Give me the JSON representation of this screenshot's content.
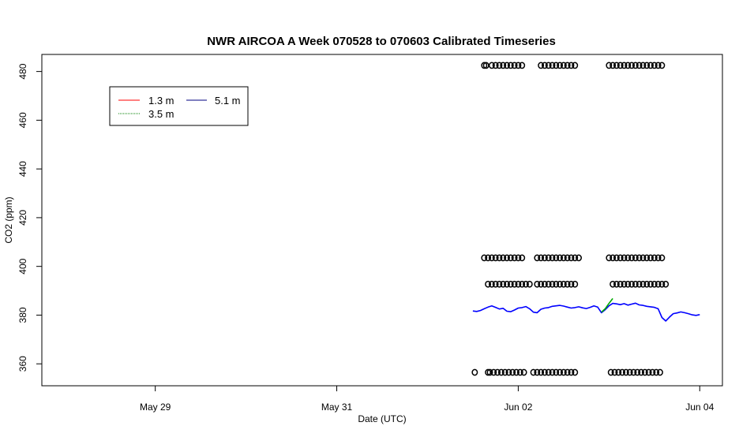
{
  "chart_data": {
    "type": "line",
    "title": "NWR AIRCOA A  Week 070528 to 070603  Calibrated Timeseries",
    "xlabel": "Date (UTC)",
    "ylabel": "CO2 (ppm)",
    "xlim": [
      "2007-05-27T18:00",
      "2007-06-04T06:00"
    ],
    "ylim": [
      351,
      487
    ],
    "x_ticks": [
      {
        "date": "2007-05-29",
        "label": "May 29"
      },
      {
        "date": "2007-05-31",
        "label": "May 31"
      },
      {
        "date": "2007-06-02",
        "label": "Jun 02"
      },
      {
        "date": "2007-06-04",
        "label": "Jun 04"
      }
    ],
    "y_ticks": [
      360,
      380,
      400,
      420,
      440,
      460,
      480
    ],
    "legend": {
      "placement": "top-left",
      "entries": [
        {
          "label": "1.3 m",
          "color": "#ff0000"
        },
        {
          "label": "5.1 m",
          "color": "#000080"
        },
        {
          "label": "3.5 m",
          "color": "#008000"
        }
      ]
    },
    "series": [
      {
        "name": "5.1 m",
        "color": "#0000ff",
        "points": [
          [
            "2007-06-01T12:00",
            381.7
          ],
          [
            "2007-06-01T13:00",
            381.5
          ],
          [
            "2007-06-01T14:00",
            381.9
          ],
          [
            "2007-06-01T15:00",
            382.6
          ],
          [
            "2007-06-01T16:00",
            383.3
          ],
          [
            "2007-06-01T17:00",
            383.8
          ],
          [
            "2007-06-01T18:00",
            383.2
          ],
          [
            "2007-06-01T19:00",
            382.5
          ],
          [
            "2007-06-01T20:00",
            382.8
          ],
          [
            "2007-06-01T21:00",
            381.6
          ],
          [
            "2007-06-01T22:00",
            381.4
          ],
          [
            "2007-06-01T23:00",
            382.1
          ],
          [
            "2007-06-02T00:00",
            382.9
          ],
          [
            "2007-06-02T01:00",
            383.1
          ],
          [
            "2007-06-02T02:00",
            383.5
          ],
          [
            "2007-06-02T03:00",
            382.6
          ],
          [
            "2007-06-02T04:00",
            381.2
          ],
          [
            "2007-06-02T05:00",
            381.0
          ],
          [
            "2007-06-02T06:00",
            382.4
          ],
          [
            "2007-06-02T07:00",
            382.9
          ],
          [
            "2007-06-02T08:00",
            383.1
          ],
          [
            "2007-06-02T09:00",
            383.6
          ],
          [
            "2007-06-02T10:00",
            383.8
          ],
          [
            "2007-06-02T11:00",
            384.0
          ],
          [
            "2007-06-02T12:00",
            383.7
          ],
          [
            "2007-06-02T13:00",
            383.3
          ],
          [
            "2007-06-02T14:00",
            382.9
          ],
          [
            "2007-06-02T15:00",
            383.1
          ],
          [
            "2007-06-02T16:00",
            383.4
          ],
          [
            "2007-06-02T17:00",
            383.0
          ],
          [
            "2007-06-02T18:00",
            382.7
          ],
          [
            "2007-06-02T19:00",
            383.2
          ],
          [
            "2007-06-02T20:00",
            383.8
          ],
          [
            "2007-06-02T21:00",
            383.3
          ],
          [
            "2007-06-02T22:00",
            381.0
          ],
          [
            "2007-06-02T23:00",
            382.2
          ],
          [
            "2007-06-03T00:00",
            383.8
          ],
          [
            "2007-06-03T01:00",
            384.8
          ],
          [
            "2007-06-03T02:00",
            384.6
          ],
          [
            "2007-06-03T03:00",
            384.3
          ],
          [
            "2007-06-03T04:00",
            384.7
          ],
          [
            "2007-06-03T05:00",
            384.1
          ],
          [
            "2007-06-03T06:00",
            384.5
          ],
          [
            "2007-06-03T07:00",
            384.9
          ],
          [
            "2007-06-03T08:00",
            384.2
          ],
          [
            "2007-06-03T09:00",
            384.0
          ],
          [
            "2007-06-03T10:00",
            383.6
          ],
          [
            "2007-06-03T11:00",
            383.4
          ],
          [
            "2007-06-03T12:00",
            383.2
          ],
          [
            "2007-06-03T13:00",
            382.6
          ],
          [
            "2007-06-03T14:00",
            379.0
          ],
          [
            "2007-06-03T15:00",
            377.6
          ],
          [
            "2007-06-03T16:00",
            379.2
          ],
          [
            "2007-06-03T17:00",
            380.6
          ],
          [
            "2007-06-03T18:00",
            380.9
          ],
          [
            "2007-06-03T19:00",
            381.3
          ],
          [
            "2007-06-03T20:00",
            381.0
          ],
          [
            "2007-06-03T21:00",
            380.6
          ],
          [
            "2007-06-03T22:00",
            380.1
          ],
          [
            "2007-06-03T23:00",
            379.9
          ],
          [
            "2007-06-04T00:00",
            380.2
          ]
        ]
      },
      {
        "name": "3.5 m",
        "color": "#00aa00",
        "points": [
          [
            "2007-06-02T22:00",
            381.2
          ],
          [
            "2007-06-02T23:00",
            382.6
          ],
          [
            "2007-06-03T00:00",
            384.8
          ],
          [
            "2007-06-03T01:00",
            386.8
          ]
        ]
      }
    ],
    "calibration_markers": {
      "marker": "open-circle",
      "levels": [
        {
          "y": 482.5,
          "x": [
            "2007-06-01T15:00",
            "2007-06-01T15:30",
            "2007-06-01T17:00",
            "2007-06-01T18:00",
            "2007-06-01T19:00",
            "2007-06-01T20:00",
            "2007-06-01T21:00",
            "2007-06-01T22:00",
            "2007-06-01T23:00",
            "2007-06-02T00:00",
            "2007-06-02T01:00",
            "2007-06-02T06:00",
            "2007-06-02T07:00",
            "2007-06-02T08:00",
            "2007-06-02T09:00",
            "2007-06-02T10:00",
            "2007-06-02T11:00",
            "2007-06-02T12:00",
            "2007-06-02T13:00",
            "2007-06-02T14:00",
            "2007-06-02T15:00",
            "2007-06-03T00:00",
            "2007-06-03T01:00",
            "2007-06-03T02:00",
            "2007-06-03T03:00",
            "2007-06-03T04:00",
            "2007-06-03T05:00",
            "2007-06-03T06:00",
            "2007-06-03T07:00",
            "2007-06-03T08:00",
            "2007-06-03T09:00",
            "2007-06-03T10:00",
            "2007-06-03T11:00",
            "2007-06-03T12:00",
            "2007-06-03T13:00",
            "2007-06-03T14:00"
          ]
        },
        {
          "y": 403.5,
          "x": [
            "2007-06-01T15:00",
            "2007-06-01T16:00",
            "2007-06-01T17:00",
            "2007-06-01T18:00",
            "2007-06-01T19:00",
            "2007-06-01T20:00",
            "2007-06-01T21:00",
            "2007-06-01T22:00",
            "2007-06-01T23:00",
            "2007-06-02T00:00",
            "2007-06-02T01:00",
            "2007-06-02T05:00",
            "2007-06-02T06:00",
            "2007-06-02T07:00",
            "2007-06-02T08:00",
            "2007-06-02T09:00",
            "2007-06-02T10:00",
            "2007-06-02T11:00",
            "2007-06-02T12:00",
            "2007-06-02T13:00",
            "2007-06-02T14:00",
            "2007-06-02T15:00",
            "2007-06-02T16:00",
            "2007-06-03T00:00",
            "2007-06-03T01:00",
            "2007-06-03T02:00",
            "2007-06-03T03:00",
            "2007-06-03T04:00",
            "2007-06-03T05:00",
            "2007-06-03T06:00",
            "2007-06-03T07:00",
            "2007-06-03T08:00",
            "2007-06-03T09:00",
            "2007-06-03T10:00",
            "2007-06-03T11:00",
            "2007-06-03T12:00",
            "2007-06-03T13:00",
            "2007-06-03T14:00"
          ]
        },
        {
          "y": 392.7,
          "x": [
            "2007-06-01T16:00",
            "2007-06-01T17:00",
            "2007-06-01T18:00",
            "2007-06-01T19:00",
            "2007-06-01T20:00",
            "2007-06-01T21:00",
            "2007-06-01T22:00",
            "2007-06-01T23:00",
            "2007-06-02T00:00",
            "2007-06-02T01:00",
            "2007-06-02T02:00",
            "2007-06-02T03:00",
            "2007-06-02T05:00",
            "2007-06-02T06:00",
            "2007-06-02T07:00",
            "2007-06-02T08:00",
            "2007-06-02T09:00",
            "2007-06-02T10:00",
            "2007-06-02T11:00",
            "2007-06-02T12:00",
            "2007-06-02T13:00",
            "2007-06-02T14:00",
            "2007-06-02T15:00",
            "2007-06-03T01:00",
            "2007-06-03T02:00",
            "2007-06-03T03:00",
            "2007-06-03T04:00",
            "2007-06-03T05:00",
            "2007-06-03T06:00",
            "2007-06-03T07:00",
            "2007-06-03T08:00",
            "2007-06-03T09:00",
            "2007-06-03T10:00",
            "2007-06-03T11:00",
            "2007-06-03T12:00",
            "2007-06-03T13:00",
            "2007-06-03T14:00",
            "2007-06-03T15:00"
          ]
        },
        {
          "y": 356.5,
          "x": [
            "2007-06-01T12:30",
            "2007-06-01T16:00",
            "2007-06-01T16:30",
            "2007-06-01T17:30",
            "2007-06-01T18:30",
            "2007-06-01T19:30",
            "2007-06-01T20:30",
            "2007-06-01T21:30",
            "2007-06-01T22:30",
            "2007-06-01T23:30",
            "2007-06-02T00:30",
            "2007-06-02T01:30",
            "2007-06-02T04:00",
            "2007-06-02T05:00",
            "2007-06-02T06:00",
            "2007-06-02T07:00",
            "2007-06-02T08:00",
            "2007-06-02T09:00",
            "2007-06-02T10:00",
            "2007-06-02T11:00",
            "2007-06-02T12:00",
            "2007-06-02T13:00",
            "2007-06-02T14:00",
            "2007-06-02T15:00",
            "2007-06-03T00:30",
            "2007-06-03T01:30",
            "2007-06-03T02:30",
            "2007-06-03T03:30",
            "2007-06-03T04:30",
            "2007-06-03T05:30",
            "2007-06-03T06:30",
            "2007-06-03T07:30",
            "2007-06-03T08:30",
            "2007-06-03T09:30",
            "2007-06-03T10:30",
            "2007-06-03T11:30",
            "2007-06-03T12:30",
            "2007-06-03T13:30"
          ]
        }
      ]
    }
  }
}
